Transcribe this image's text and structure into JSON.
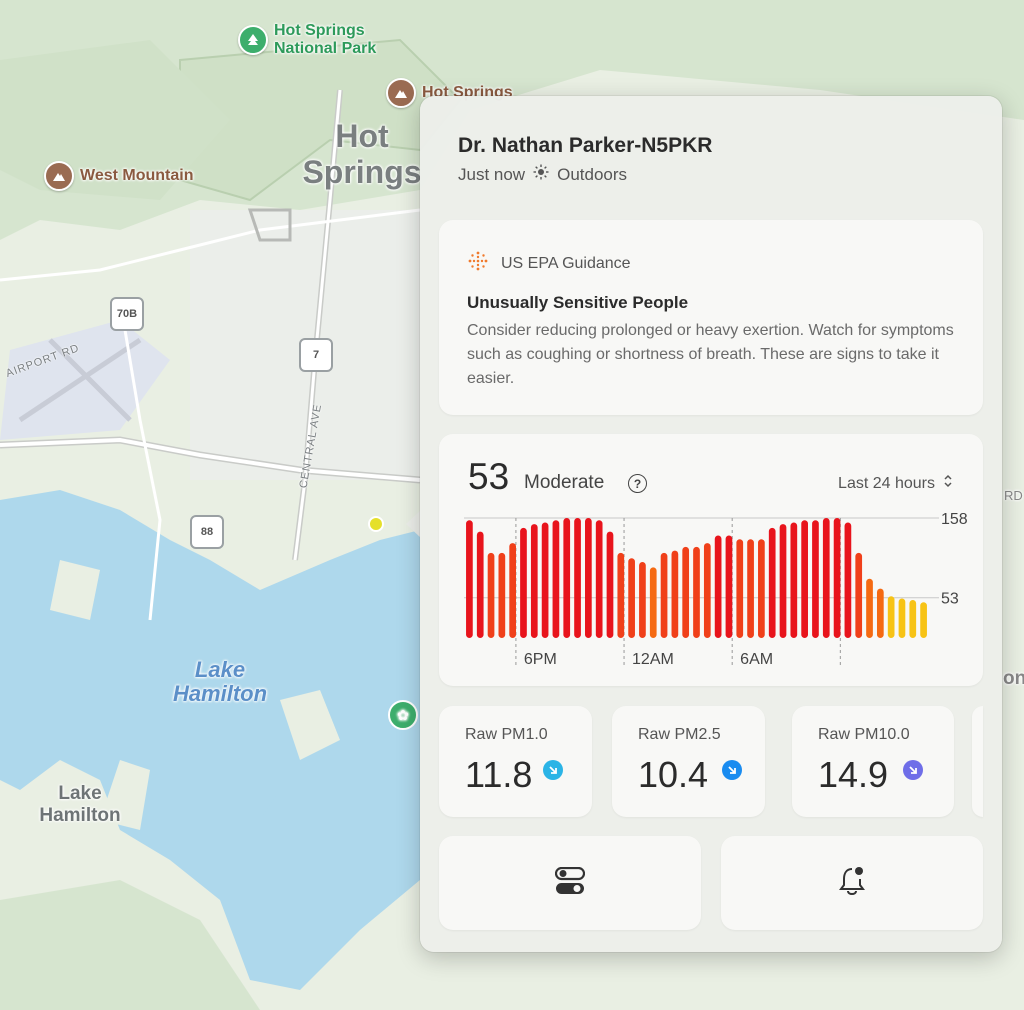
{
  "map": {
    "pois": [
      {
        "name": "Hot Springs National Park",
        "line1": "Hot Springs",
        "line2": "National Park"
      },
      {
        "name": "Hot Springs"
      },
      {
        "name": "West Mountain"
      }
    ],
    "city": "Hot Springs",
    "lake": "Lake Hamilton",
    "town": "Lake Hamilton",
    "roads": [
      "AIRPORT RD",
      "CENTRAL AVE"
    ],
    "shields": [
      "70B",
      "7",
      "88"
    ],
    "edge_labels": [
      "RD",
      "on"
    ]
  },
  "panel": {
    "title": "Dr. Nathan Parker-N5PKR",
    "time": "Just now",
    "location": "Outdoors",
    "guidance": {
      "source": "US EPA Guidance",
      "heading": "Unusually Sensitive People",
      "body": "Consider reducing prolonged or heavy exertion. Watch for symptoms such as coughing or shortness of breath. These are signs to take it easier."
    },
    "aqi": {
      "value": "53",
      "category": "Moderate",
      "help": "?",
      "range": "Last 24 hours"
    },
    "metrics": [
      {
        "label": "Raw PM1.0",
        "value": "11.8",
        "trend": "down",
        "color": "#2bb4e6"
      },
      {
        "label": "Raw PM2.5",
        "value": "10.4",
        "trend": "down",
        "color": "#1a8cf0"
      },
      {
        "label": "Raw PM10.0",
        "value": "14.9",
        "trend": "down",
        "color": "#6f6ee8"
      }
    ],
    "buttons": [
      {
        "icon": "toggles-icon"
      },
      {
        "icon": "bell-icon"
      }
    ]
  },
  "chart_data": {
    "type": "bar",
    "title": "",
    "xlabel": "",
    "ylabel": "",
    "x_tick_labels": [
      "6PM",
      "12AM",
      "6AM"
    ],
    "y_tick_labels": [
      "158",
      "53"
    ],
    "ylim": [
      0,
      158
    ],
    "values": [
      155,
      140,
      112,
      112,
      125,
      145,
      150,
      152,
      155,
      158,
      158,
      158,
      155,
      140,
      112,
      105,
      100,
      93,
      112,
      115,
      120,
      120,
      125,
      135,
      135,
      130,
      130,
      130,
      145,
      150,
      152,
      155,
      155,
      158,
      158,
      152,
      112,
      78,
      65,
      55,
      52,
      50,
      47
    ],
    "colors_by_level": {
      "high": "#e8141c",
      "mid": "#f56a12",
      "low": "#f7c315"
    }
  }
}
